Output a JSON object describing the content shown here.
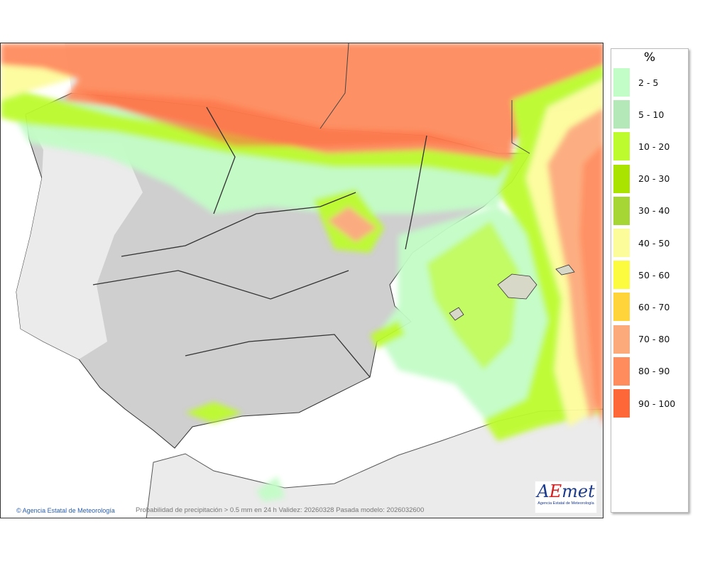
{
  "map": {
    "attribution": "© Agencia Estatal de Meteorología",
    "caption": "Probabilidad de precipitación > 0.5 mm en 24 h Validez: 20260328 Pasada modelo: 2026032600",
    "logo": {
      "mark_left": "A",
      "mark_mid": "E",
      "mark_right": "met",
      "subtitle": "Agencia Estatal de Meteorología"
    }
  },
  "legend": {
    "title": "%",
    "items": [
      {
        "label": "2 - 5",
        "color": "#c2fcc6"
      },
      {
        "label": "5 - 10",
        "color": "#b4e8b8"
      },
      {
        "label": "10 - 20",
        "color": "#bdfb2f"
      },
      {
        "label": "20 - 30",
        "color": "#abe300"
      },
      {
        "label": "30 - 40",
        "color": "#a5d636"
      },
      {
        "label": "40 - 50",
        "color": "#fdfc9b"
      },
      {
        "label": "50 - 60",
        "color": "#fdfb40"
      },
      {
        "label": "60 - 70",
        "color": "#ffd33a"
      },
      {
        "label": "70 - 80",
        "color": "#fcaa7c"
      },
      {
        "label": "80 - 90",
        "color": "#fe8c5d"
      },
      {
        "label": "90 - 100",
        "color": "#fe6738"
      }
    ]
  }
}
